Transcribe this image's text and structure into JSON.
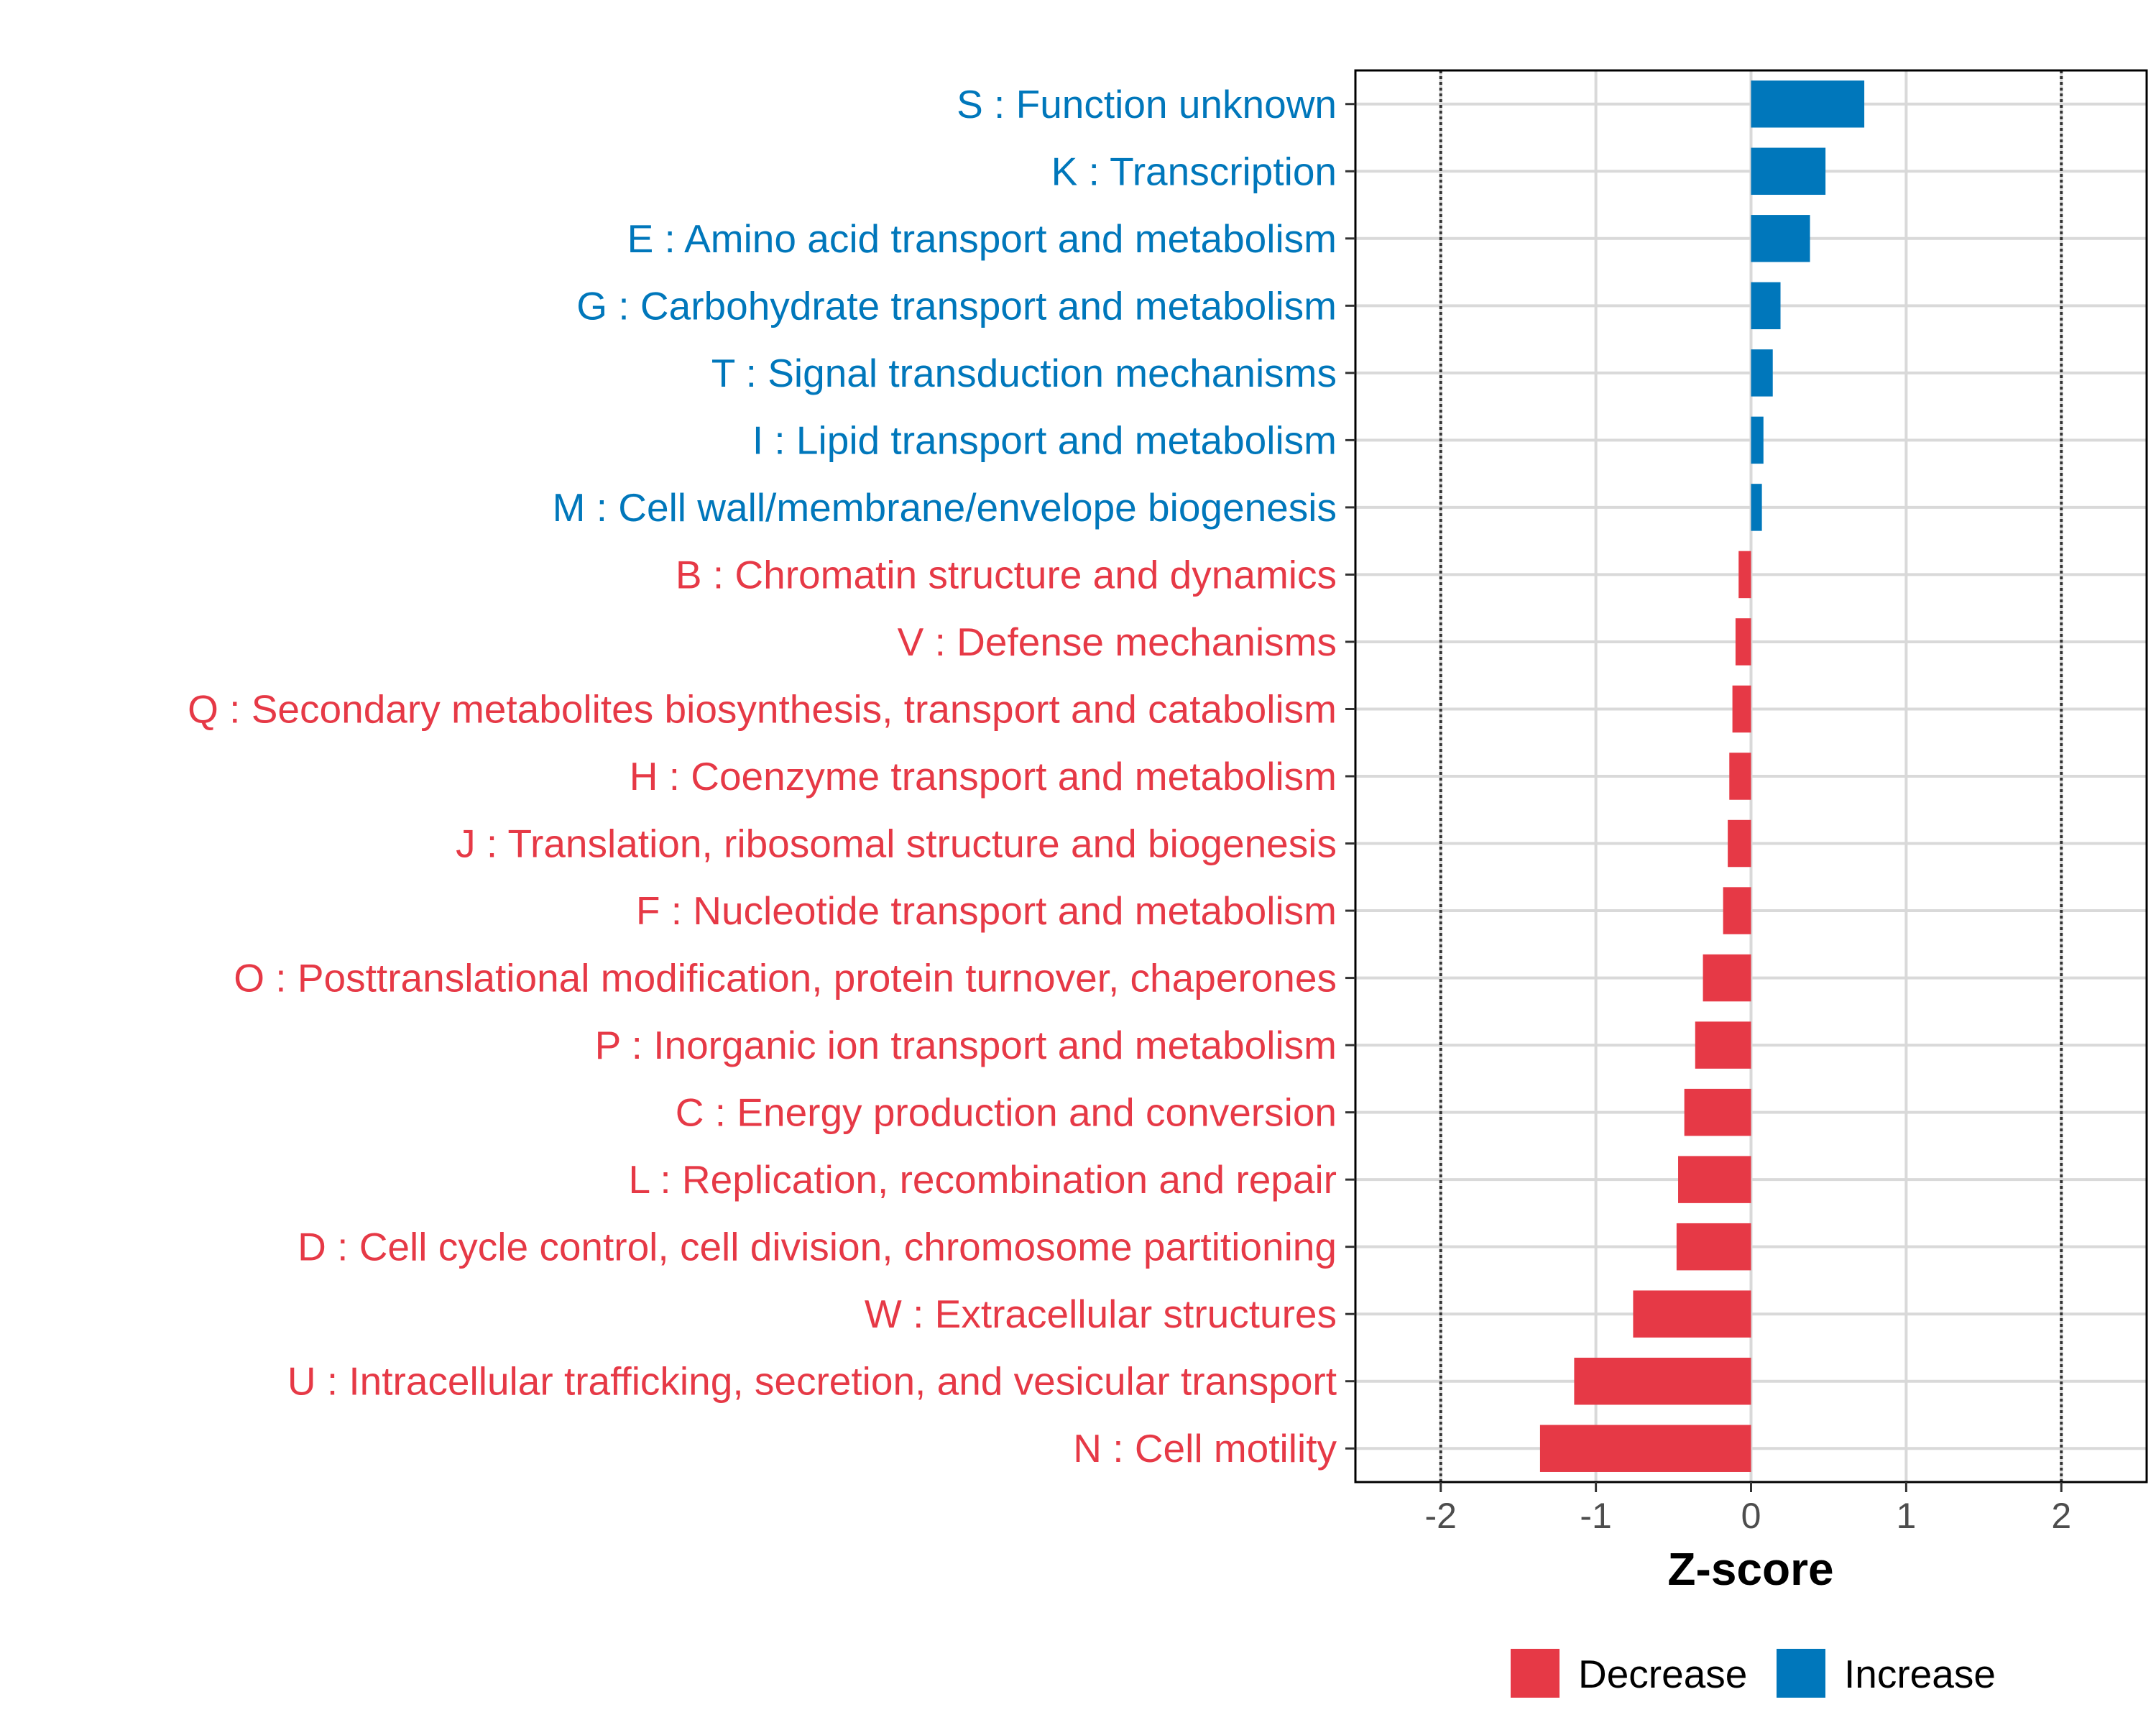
{
  "chart_data": {
    "type": "bar",
    "orientation": "horizontal",
    "title": "",
    "xlabel": "Z-score",
    "ylabel": "",
    "xlim": [
      -2.55,
      2.55
    ],
    "xticks": [
      -2,
      -1,
      0,
      1,
      2
    ],
    "xtick_labels": [
      "-2",
      "-1",
      "0",
      "1",
      "2"
    ],
    "reference_lines": [
      -2,
      2
    ],
    "grid": true,
    "categories": [
      "S : Function unknown",
      "K : Transcription",
      "E : Amino acid transport and metabolism",
      "G : Carbohydrate transport and metabolism",
      "T : Signal transduction mechanisms",
      "I : Lipid transport and metabolism",
      "M : Cell wall/membrane/envelope biogenesis",
      "B : Chromatin structure and dynamics",
      "V : Defense mechanisms",
      "Q : Secondary metabolites biosynthesis, transport and catabolism",
      "H : Coenzyme transport and metabolism",
      "J : Translation, ribosomal structure and biogenesis",
      "F : Nucleotide transport and metabolism",
      "O : Posttranslational modification, protein turnover, chaperones",
      "P : Inorganic ion transport and metabolism",
      "C : Energy production and conversion",
      "L : Replication, recombination and repair",
      "D : Cell cycle control, cell division, chromosome partitioning",
      "W : Extracellular structures",
      "U : Intracellular trafficking, secretion, and vesicular transport",
      "N : Cell motility"
    ],
    "values": [
      0.73,
      0.48,
      0.38,
      0.19,
      0.14,
      0.08,
      0.07,
      -0.08,
      -0.1,
      -0.12,
      -0.14,
      -0.15,
      -0.18,
      -0.31,
      -0.36,
      -0.43,
      -0.47,
      -0.48,
      -0.76,
      -1.14,
      -1.36
    ],
    "groups": [
      "Increase",
      "Increase",
      "Increase",
      "Increase",
      "Increase",
      "Increase",
      "Increase",
      "Decrease",
      "Decrease",
      "Decrease",
      "Decrease",
      "Decrease",
      "Decrease",
      "Decrease",
      "Decrease",
      "Decrease",
      "Decrease",
      "Decrease",
      "Decrease",
      "Decrease",
      "Decrease"
    ],
    "legend": {
      "position": "bottom",
      "entries": [
        {
          "label": "Decrease",
          "color": "#e63946"
        },
        {
          "label": "Increase",
          "color": "#0077bb"
        }
      ]
    },
    "colors": {
      "Increase": "#0077bb",
      "Decrease": "#e63946",
      "grid": "#d9d9d9",
      "reference_line": "#333333",
      "panel_border": "#000000"
    }
  }
}
